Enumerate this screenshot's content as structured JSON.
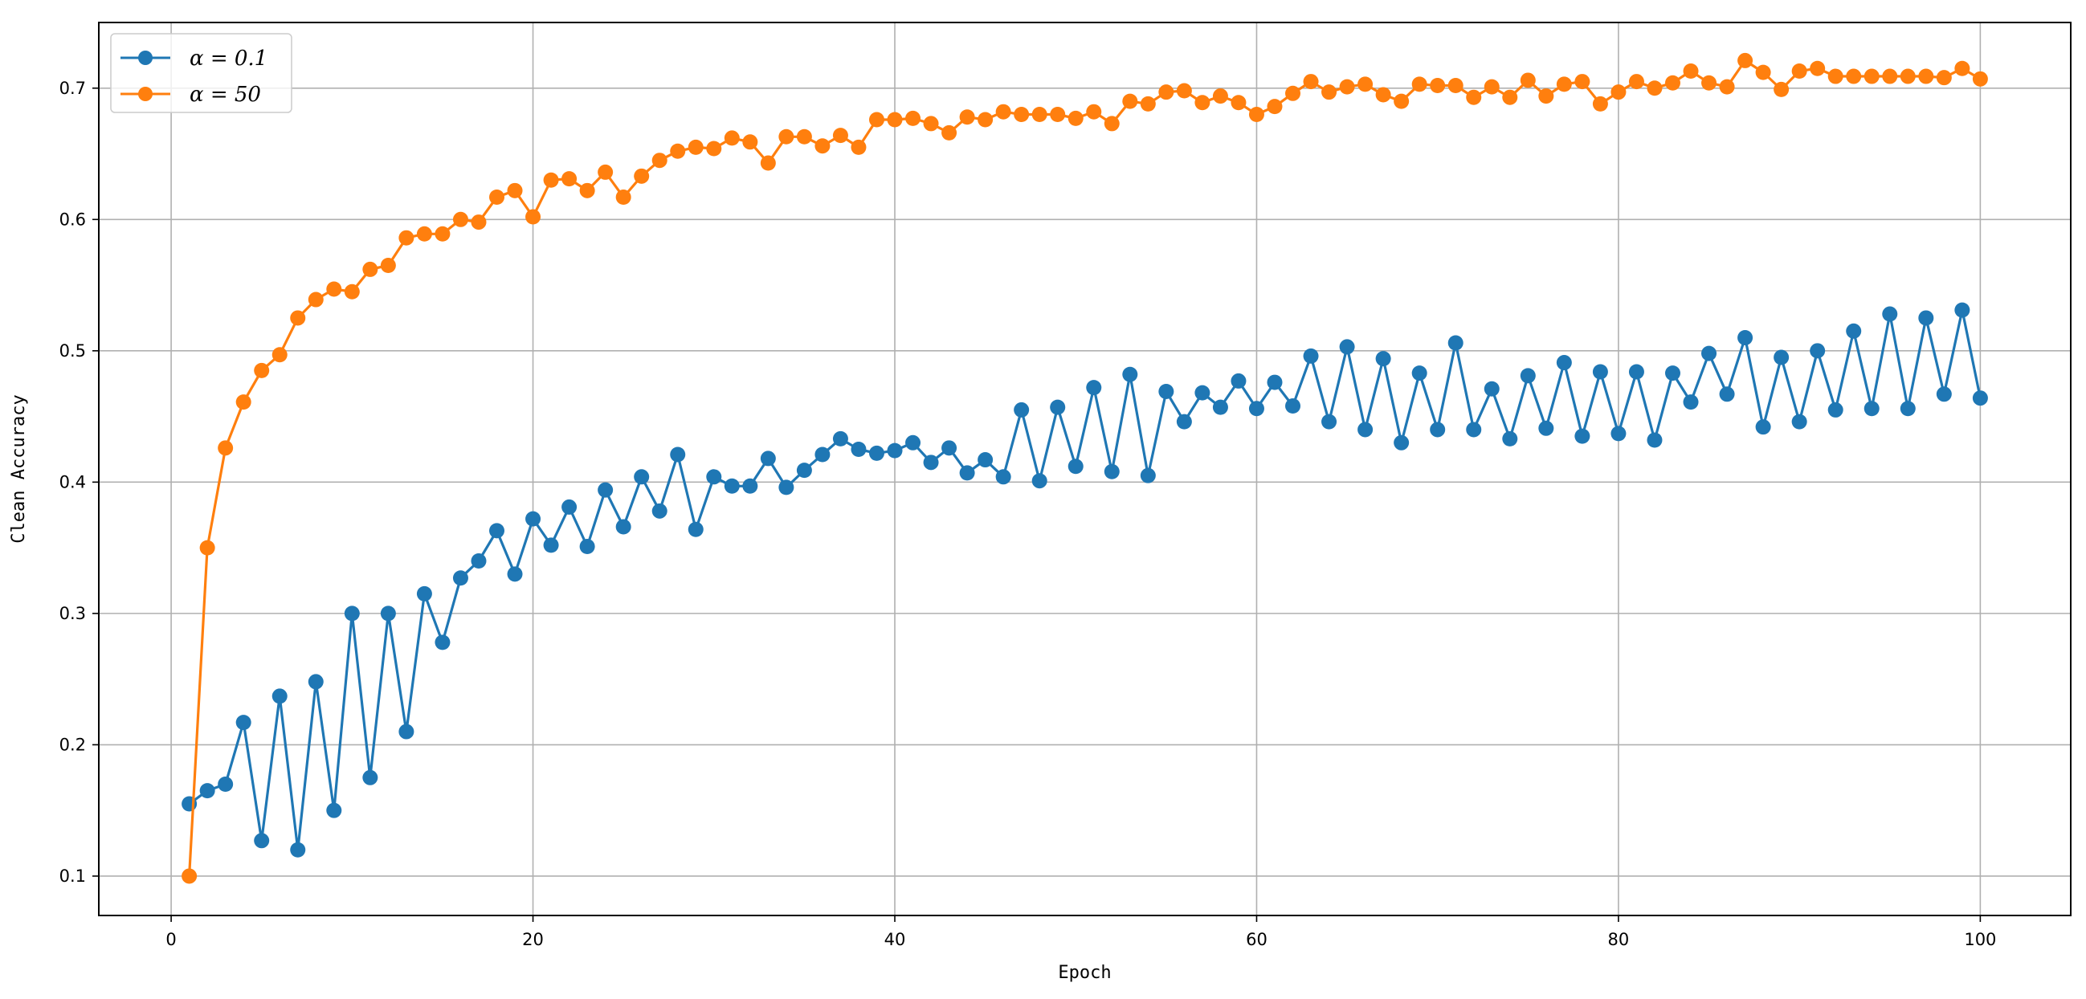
{
  "chart_data": {
    "type": "line",
    "title": "",
    "xlabel": "Epoch",
    "ylabel": "Clean Accuracy",
    "xlim": [
      -4,
      105
    ],
    "ylim": [
      0.07,
      0.75
    ],
    "xticks": [
      0,
      20,
      40,
      60,
      80,
      100
    ],
    "yticks": [
      0.1,
      0.2,
      0.3,
      0.4,
      0.5,
      0.6,
      0.7
    ],
    "xtick_labels": [
      "0",
      "20",
      "40",
      "60",
      "80",
      "100"
    ],
    "ytick_labels": [
      "0.1",
      "0.2",
      "0.3",
      "0.4",
      "0.5",
      "0.6",
      "0.7"
    ],
    "grid": true,
    "legend_position": "top-left",
    "x": [
      1,
      2,
      3,
      4,
      5,
      6,
      7,
      8,
      9,
      10,
      11,
      12,
      13,
      14,
      15,
      16,
      17,
      18,
      19,
      20,
      21,
      22,
      23,
      24,
      25,
      26,
      27,
      28,
      29,
      30,
      31,
      32,
      33,
      34,
      35,
      36,
      37,
      38,
      39,
      40,
      41,
      42,
      43,
      44,
      45,
      46,
      47,
      48,
      49,
      50,
      51,
      52,
      53,
      54,
      55,
      56,
      57,
      58,
      59,
      60,
      61,
      62,
      63,
      64,
      65,
      66,
      67,
      68,
      69,
      70,
      71,
      72,
      73,
      74,
      75,
      76,
      77,
      78,
      79,
      80,
      81,
      82,
      83,
      84,
      85,
      86,
      87,
      88,
      89,
      90,
      91,
      92,
      93,
      94,
      95,
      96,
      97,
      98,
      99,
      100
    ],
    "series": [
      {
        "name": "α = 0.1",
        "color": "#1f77b4",
        "values": [
          0.155,
          0.165,
          0.17,
          0.217,
          0.127,
          0.237,
          0.12,
          0.248,
          0.15,
          0.3,
          0.175,
          0.3,
          0.21,
          0.315,
          0.278,
          0.327,
          0.34,
          0.363,
          0.33,
          0.372,
          0.352,
          0.381,
          0.351,
          0.394,
          0.366,
          0.404,
          0.378,
          0.421,
          0.364,
          0.404,
          0.397,
          0.397,
          0.418,
          0.396,
          0.409,
          0.421,
          0.433,
          0.425,
          0.422,
          0.424,
          0.43,
          0.415,
          0.426,
          0.407,
          0.417,
          0.404,
          0.455,
          0.401,
          0.457,
          0.412,
          0.472,
          0.408,
          0.482,
          0.405,
          0.469,
          0.446,
          0.468,
          0.457,
          0.477,
          0.456,
          0.476,
          0.458,
          0.496,
          0.446,
          0.503,
          0.44,
          0.494,
          0.43,
          0.483,
          0.44,
          0.506,
          0.44,
          0.471,
          0.433,
          0.481,
          0.441,
          0.491,
          0.435,
          0.484,
          0.437,
          0.484,
          0.432,
          0.483,
          0.461,
          0.498,
          0.467,
          0.51,
          0.442,
          0.495,
          0.446,
          0.5,
          0.455,
          0.515,
          0.456,
          0.528,
          0.456,
          0.525,
          0.467,
          0.531,
          0.464
        ]
      },
      {
        "name": "α = 50",
        "color": "#ff7f0e",
        "values": [
          0.1,
          0.35,
          0.426,
          0.461,
          0.485,
          0.497,
          0.525,
          0.539,
          0.547,
          0.545,
          0.562,
          0.565,
          0.586,
          0.589,
          0.589,
          0.6,
          0.598,
          0.617,
          0.622,
          0.602,
          0.63,
          0.631,
          0.622,
          0.636,
          0.617,
          0.633,
          0.645,
          0.652,
          0.655,
          0.654,
          0.662,
          0.659,
          0.643,
          0.663,
          0.663,
          0.656,
          0.664,
          0.655,
          0.676,
          0.676,
          0.677,
          0.673,
          0.666,
          0.678,
          0.676,
          0.682,
          0.68,
          0.68,
          0.68,
          0.677,
          0.682,
          0.673,
          0.69,
          0.688,
          0.697,
          0.698,
          0.689,
          0.694,
          0.689,
          0.68,
          0.686,
          0.696,
          0.705,
          0.697,
          0.701,
          0.703,
          0.695,
          0.69,
          0.703,
          0.702,
          0.702,
          0.693,
          0.701,
          0.693,
          0.706,
          0.694,
          0.703,
          0.705,
          0.688,
          0.697,
          0.705,
          0.7,
          0.704,
          0.713,
          0.704,
          0.701,
          0.721,
          0.712,
          0.699,
          0.713,
          0.715,
          0.709,
          0.709,
          0.709,
          0.709,
          0.709,
          0.709,
          0.708,
          0.715,
          0.707
        ]
      }
    ]
  }
}
